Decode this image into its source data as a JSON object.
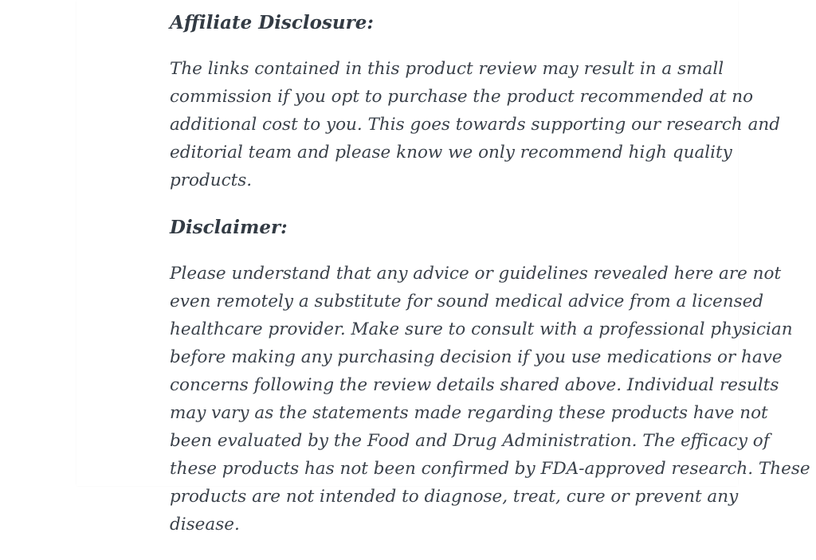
{
  "page": {
    "background_color": "#ffffff",
    "text_color": "#3a414a",
    "heading_color": "#333b44"
  },
  "content": {
    "sections": [
      {
        "heading": "Affiliate Disclosure:",
        "body": "The links contained in this product review may result in a small commission if you opt to purchase the product recommended at no additional cost to you. This goes towards supporting our research and editorial team and please know we only recommend high quality products."
      },
      {
        "heading": "Disclaimer:",
        "body": "Please understand that any advice or guidelines revealed here are not even remotely a substitute for sound medical advice from a licensed healthcare provider. Make sure to consult with a professional physician before making any purchasing decision if you use medications or have concerns following the review details shared above. Individual results may vary as the statements made regarding these products have not been evaluated by the Food and Drug Administration. The efficacy of these products has not been confirmed by FDA-approved research. These products are not intended to diagnose, treat, cure or prevent any disease."
      }
    ]
  }
}
